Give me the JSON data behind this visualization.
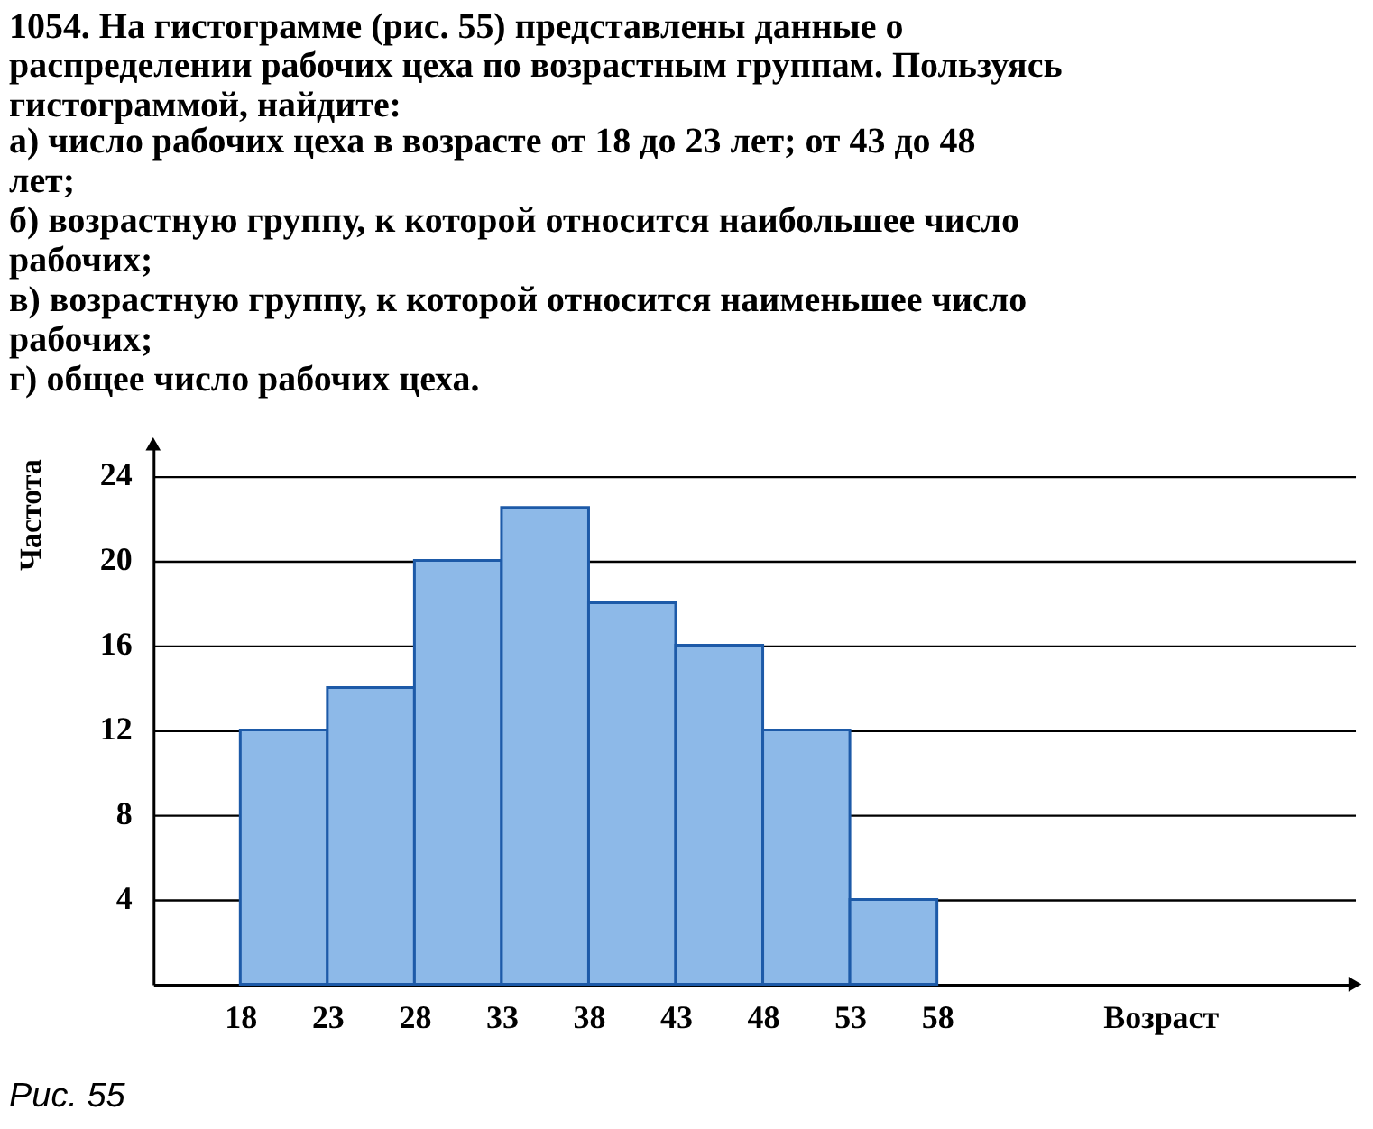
{
  "chart_data": {
    "type": "histogram",
    "title": "1054. На гистограмме (рис. 55) представлены данные о распределении рабочих цеха по возрастным группам. Пользуясь гистограммой, найдите:",
    "annotations": [
      "а) число рабочих цеха в возрасте от 18 до 23 лет; от 43 до 48 лет;",
      "б) возрастную группу, к которой относится наибольшее число рабочих;",
      "в) возрастную группу, к которой относится наименьшее число рабочих;",
      "г) общее число рабочих цеха.",
      "Рис. 55"
    ],
    "xlabel": "Возраст",
    "ylabel": "Частота",
    "bins": [
      18,
      23,
      28,
      33,
      38,
      43,
      48,
      53,
      58
    ],
    "values": [
      12,
      14,
      20,
      22.5,
      18,
      16,
      12,
      4
    ],
    "color": "#8db9e8",
    "xlim": [
      13,
      82
    ],
    "ylim": [
      0,
      25.5
    ],
    "xticks": [
      18,
      23,
      28,
      33,
      38,
      43,
      48,
      53,
      58
    ],
    "yticks": [
      4,
      8,
      12,
      16,
      20,
      24
    ],
    "grid": "y"
  }
}
